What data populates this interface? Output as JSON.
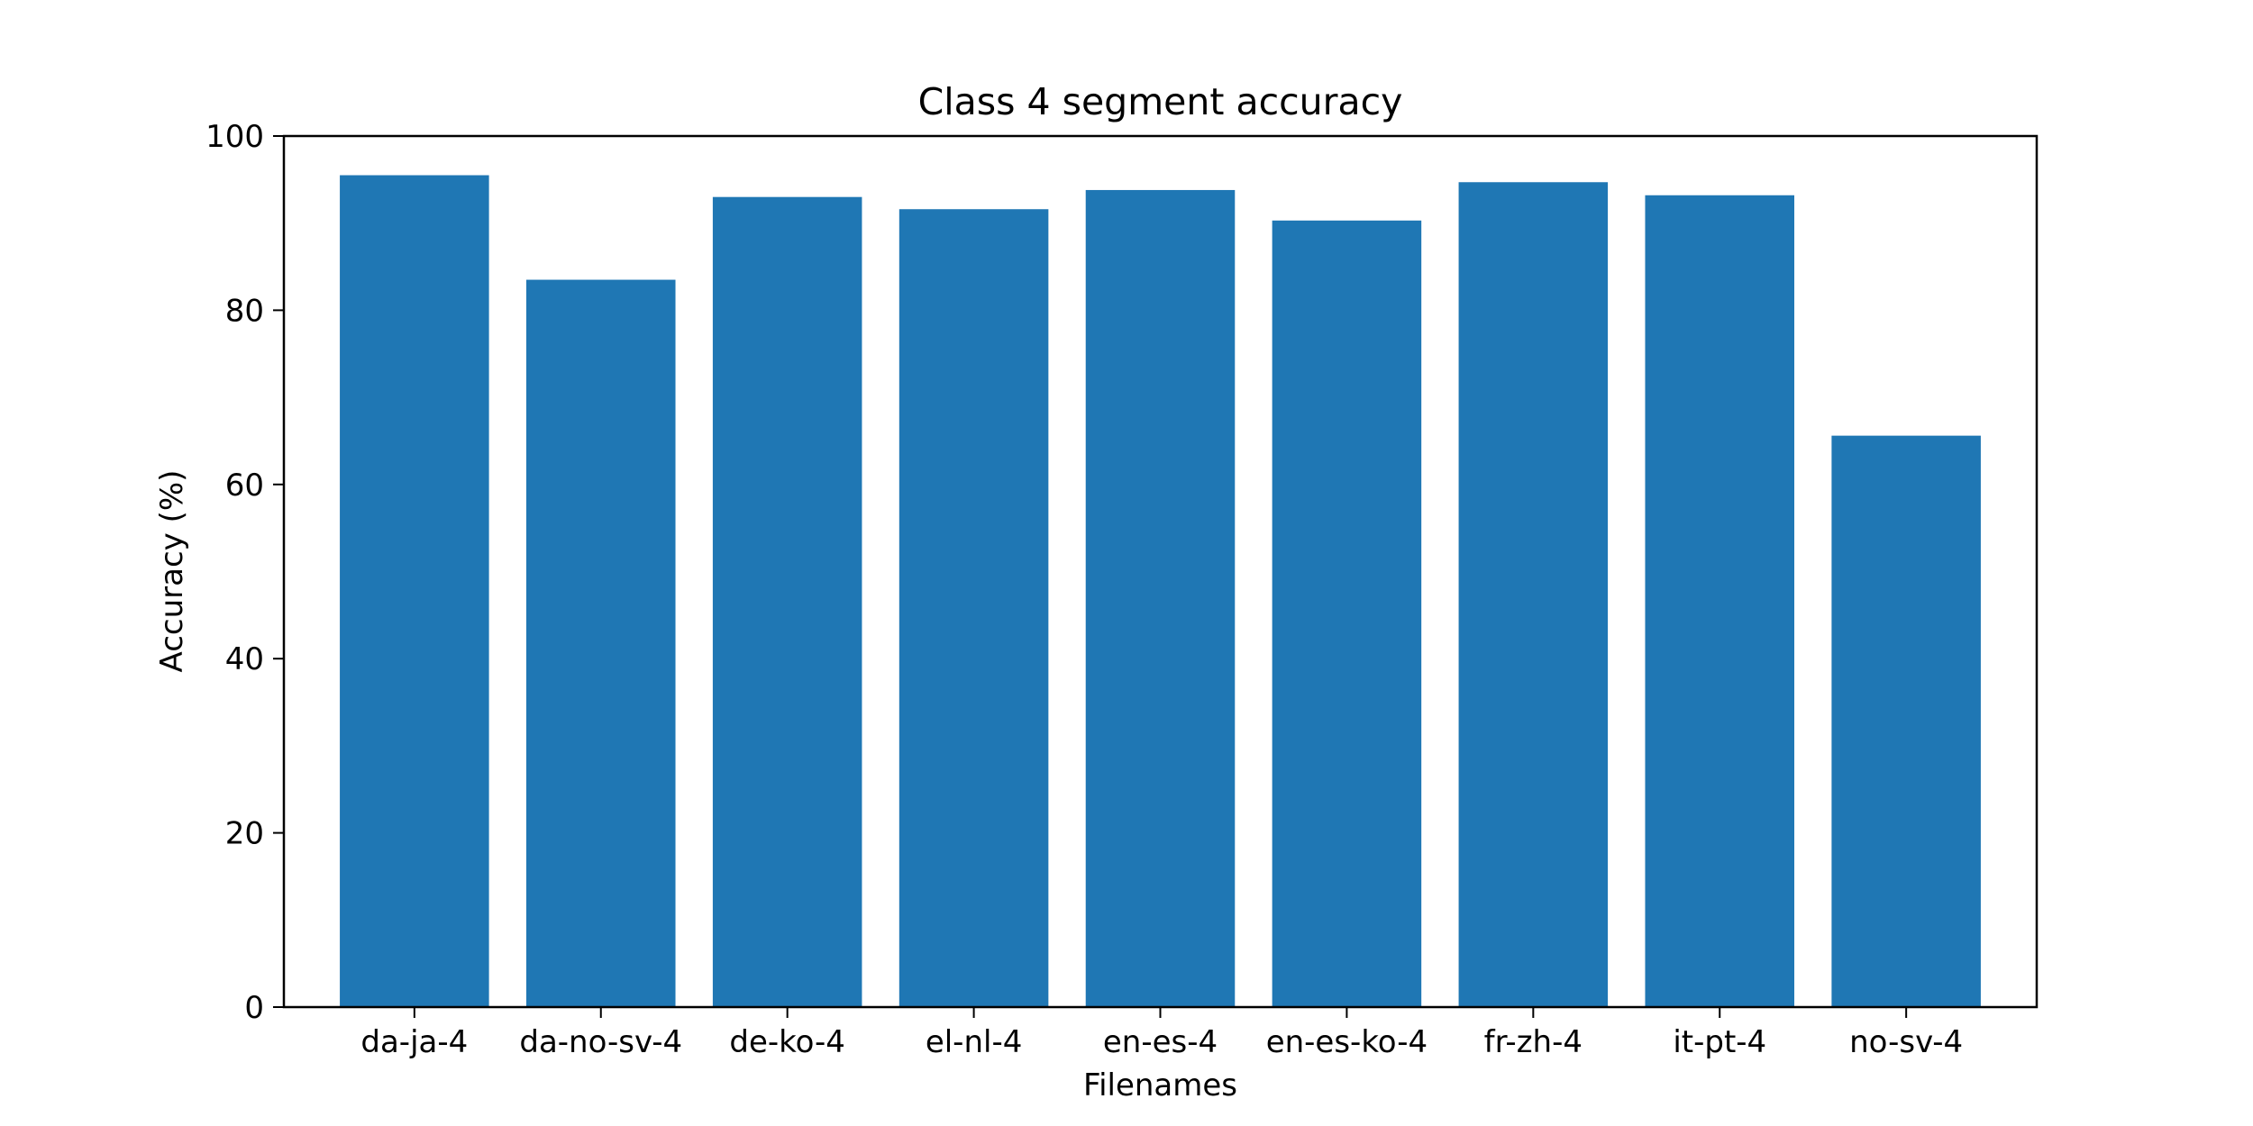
{
  "chart_data": {
    "type": "bar",
    "title": "Class 4 segment accuracy",
    "xlabel": "Filenames",
    "ylabel": "Accuracy (%)",
    "categories": [
      "da-ja-4",
      "da-no-sv-4",
      "de-ko-4",
      "el-nl-4",
      "en-es-4",
      "en-es-ko-4",
      "fr-zh-4",
      "it-pt-4",
      "no-sv-4"
    ],
    "values": [
      95.5,
      83.5,
      93.0,
      91.6,
      93.8,
      90.3,
      94.7,
      93.2,
      65.6
    ],
    "ylim": [
      0,
      100
    ],
    "yticks": [
      0,
      20,
      40,
      60,
      80,
      100
    ],
    "grid": false,
    "bar_color": "#1f77b4"
  }
}
